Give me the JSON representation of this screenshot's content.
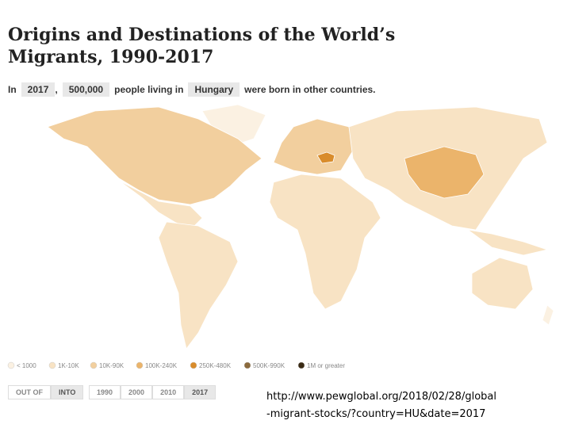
{
  "header": {
    "title_lines": [
      "Origins and Destinations of the World’s",
      "Migrants, 1990-2017"
    ]
  },
  "sentence": {
    "prefix": "In",
    "year": "2017",
    "comma": ",",
    "count": "500,000",
    "middle": "people living in",
    "country": "Hungary",
    "suffix": "were born in other countries."
  },
  "legend": {
    "items": [
      {
        "label": "< 1000",
        "color": "#fbf1e2"
      },
      {
        "label": "1K-10K",
        "color": "#f8e3c4"
      },
      {
        "label": "10K-90K",
        "color": "#f2cf9e"
      },
      {
        "label": "100K-240K",
        "color": "#ebb46b"
      },
      {
        "label": "250K-480K",
        "color": "#d98c2b"
      },
      {
        "label": "500K-990K",
        "color": "#8b6a3d"
      },
      {
        "label": "1M or greater",
        "color": "#3a2a14"
      }
    ]
  },
  "controls": {
    "direction": [
      "OUT OF",
      "INTO"
    ],
    "years": [
      "1990",
      "2000",
      "2010",
      "2017"
    ]
  },
  "caption": {
    "lines": [
      "http://www.pewglobal.org/2018/02/28/global",
      "-migrant-stocks/?country=HU&date=2017"
    ]
  }
}
